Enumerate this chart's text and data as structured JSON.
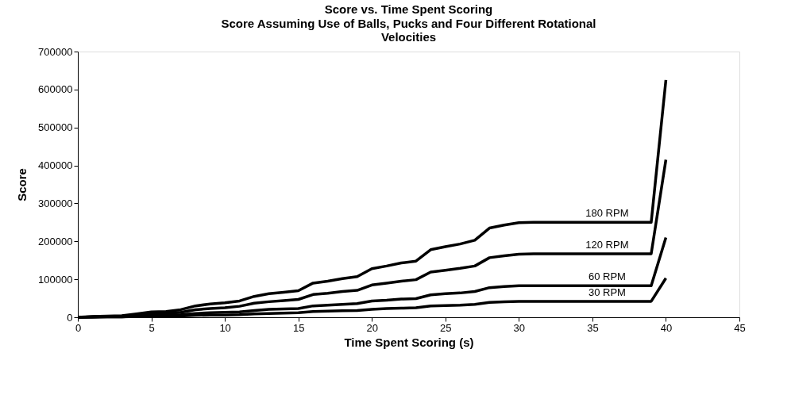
{
  "chart_data": {
    "type": "line",
    "title": "Score vs. Time Spent Scoring",
    "subtitle": "Score Assuming Use of Balls, Pucks and Four Different Rotational Velocities",
    "xlabel": "Time Spent Scoring (s)",
    "ylabel": "Score",
    "x": [
      0,
      1,
      2,
      3,
      4,
      5,
      6,
      7,
      8,
      9,
      10,
      11,
      12,
      13,
      14,
      15,
      16,
      17,
      18,
      19,
      20,
      21,
      22,
      23,
      24,
      25,
      26,
      27,
      28,
      29,
      30,
      31,
      32,
      33,
      34,
      35,
      36,
      37,
      38,
      39,
      40
    ],
    "series": [
      {
        "name": "180 RPM",
        "color": "#000000",
        "values": [
          0,
          2000,
          3000,
          4000,
          9000,
          14000,
          15000,
          20000,
          30000,
          35000,
          38000,
          43000,
          55000,
          62000,
          66000,
          70000,
          90000,
          95000,
          102000,
          107000,
          128000,
          135000,
          143000,
          148000,
          178000,
          186000,
          193000,
          203000,
          235000,
          243000,
          249000,
          250000,
          250000,
          250000,
          250000,
          250000,
          250000,
          250000,
          250000,
          250000,
          625000
        ]
      },
      {
        "name": "120 RPM",
        "color": "#000000",
        "values": [
          0,
          1000,
          2000,
          3000,
          6000,
          9000,
          10000,
          13000,
          20000,
          23000,
          25000,
          29000,
          37000,
          41000,
          44000,
          47000,
          60000,
          63000,
          68000,
          71000,
          85000,
          90000,
          95000,
          99000,
          119000,
          124000,
          129000,
          135000,
          157000,
          162000,
          166000,
          167000,
          167000,
          167000,
          167000,
          167000,
          167000,
          167000,
          167000,
          167000,
          415000
        ]
      },
      {
        "name": "60 RPM",
        "color": "#000000",
        "values": [
          0,
          1000,
          1000,
          1000,
          3000,
          5000,
          5000,
          7000,
          10000,
          12000,
          13000,
          14000,
          18000,
          21000,
          22000,
          23000,
          30000,
          32000,
          34000,
          36000,
          43000,
          45000,
          48000,
          49000,
          59000,
          62000,
          64000,
          68000,
          78000,
          81000,
          83000,
          83000,
          83000,
          83000,
          83000,
          83000,
          83000,
          83000,
          83000,
          83000,
          210000
        ]
      },
      {
        "name": "30 RPM",
        "color": "#000000",
        "values": [
          0,
          0,
          1000,
          1000,
          2000,
          2000,
          3000,
          3000,
          5000,
          6000,
          6000,
          7000,
          9000,
          10000,
          11000,
          12000,
          15000,
          16000,
          17000,
          18000,
          21000,
          23000,
          24000,
          25000,
          30000,
          31000,
          32000,
          34000,
          39000,
          41000,
          42000,
          42000,
          42000,
          42000,
          42000,
          42000,
          42000,
          42000,
          42000,
          42000,
          103000
        ]
      }
    ],
    "xlim": [
      0,
      45
    ],
    "xticks": [
      0,
      5,
      10,
      15,
      20,
      25,
      30,
      35,
      40,
      45
    ],
    "ylim": [
      0,
      700000
    ],
    "yticks": [
      0,
      100000,
      200000,
      300000,
      400000,
      500000,
      600000,
      700000
    ],
    "grid": false,
    "legend": false,
    "marker": "none",
    "line_style": "solid"
  }
}
